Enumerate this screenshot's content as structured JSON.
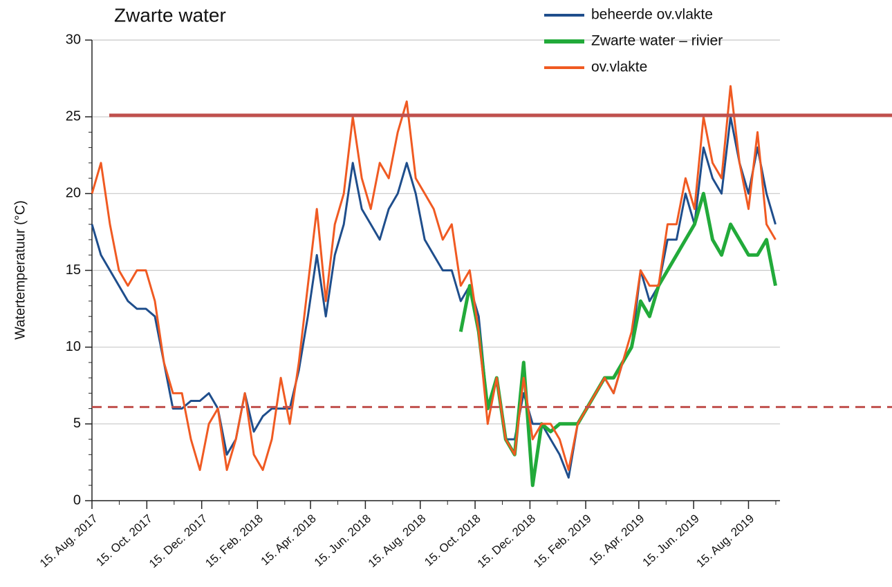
{
  "chart_data": {
    "type": "line",
    "title": "Zwarte water",
    "y_label": "Watertemperatuur (°C)",
    "x": [
      "2017-08-15",
      "2017-08-25",
      "2017-09-04",
      "2017-09-14",
      "2017-09-24",
      "2017-10-04",
      "2017-10-14",
      "2017-10-24",
      "2017-11-03",
      "2017-11-13",
      "2017-11-23",
      "2017-12-03",
      "2017-12-13",
      "2017-12-23",
      "2018-01-02",
      "2018-01-12",
      "2018-01-22",
      "2018-02-01",
      "2018-02-11",
      "2018-02-21",
      "2018-03-03",
      "2018-03-13",
      "2018-03-23",
      "2018-04-02",
      "2018-04-12",
      "2018-04-22",
      "2018-05-02",
      "2018-05-12",
      "2018-05-22",
      "2018-06-01",
      "2018-06-11",
      "2018-06-21",
      "2018-07-01",
      "2018-07-11",
      "2018-07-21",
      "2018-07-31",
      "2018-08-10",
      "2018-08-20",
      "2018-08-30",
      "2018-09-09",
      "2018-09-19",
      "2018-09-29",
      "2018-10-09",
      "2018-10-19",
      "2018-10-29",
      "2018-11-08",
      "2018-11-18",
      "2018-11-28",
      "2018-12-08",
      "2018-12-18",
      "2018-12-28",
      "2019-01-07",
      "2019-01-17",
      "2019-01-27",
      "2019-02-06",
      "2019-02-16",
      "2019-02-26",
      "2019-03-08",
      "2019-03-18",
      "2019-03-28",
      "2019-04-07",
      "2019-04-17",
      "2019-04-27",
      "2019-05-07",
      "2019-05-17",
      "2019-05-27",
      "2019-06-06",
      "2019-06-16",
      "2019-06-26",
      "2019-07-06",
      "2019-07-16",
      "2019-07-26",
      "2019-08-05",
      "2019-08-15",
      "2019-08-25",
      "2019-09-04",
      "2019-09-14"
    ],
    "series": [
      {
        "name": "beheerde ov.vlakte",
        "color": "#1f4e8c",
        "width": 3,
        "values": [
          18,
          16,
          15,
          14,
          13,
          12.5,
          12.5,
          12,
          9,
          6,
          6,
          6.5,
          6.5,
          7,
          6,
          3,
          4,
          7,
          4.5,
          5.5,
          6,
          6,
          6,
          8.5,
          12,
          16,
          12,
          16,
          18,
          22,
          19,
          18,
          17,
          19,
          20,
          22,
          20,
          17,
          16,
          15,
          15,
          13,
          14,
          12,
          6,
          8,
          4,
          4,
          7,
          5,
          5,
          4,
          3,
          1.5,
          5,
          6,
          7,
          8,
          7,
          9,
          10,
          15,
          13,
          14,
          17,
          17,
          20,
          18,
          23,
          21,
          20,
          25,
          22,
          20,
          23,
          20,
          18
        ]
      },
      {
        "name": "Zwarte water – rivier",
        "color": "#22aa3a",
        "width": 5,
        "x": [
          "2018-09-29",
          "2018-10-09",
          "2018-10-19",
          "2018-10-29",
          "2018-11-08",
          "2018-11-18",
          "2018-11-28",
          "2018-12-08",
          "2018-12-18",
          "2018-12-28",
          "2019-01-07",
          "2019-01-17",
          "2019-01-27",
          "2019-02-06",
          "2019-02-16",
          "2019-02-26",
          "2019-03-08",
          "2019-03-18",
          "2019-03-28",
          "2019-04-07",
          "2019-04-17",
          "2019-04-27",
          "2019-05-07",
          "2019-05-17",
          "2019-05-27",
          "2019-06-06",
          "2019-06-16",
          "2019-06-26",
          "2019-07-06",
          "2019-07-16",
          "2019-07-26",
          "2019-08-05",
          "2019-08-15",
          "2019-08-25",
          "2019-09-04",
          "2019-09-14"
        ],
        "values": [
          11,
          14,
          11,
          6,
          8,
          4,
          3,
          9,
          1,
          5,
          4.5,
          5,
          5,
          5,
          6,
          7,
          8,
          8,
          9,
          10,
          13,
          12,
          14,
          15,
          16,
          17,
          18,
          20,
          17,
          16,
          18,
          17,
          16,
          16,
          17,
          14
        ]
      },
      {
        "name": "ov.vlakte",
        "color": "#f05a22",
        "width": 3,
        "values": [
          20,
          22,
          18,
          15,
          14,
          15,
          15,
          13,
          9,
          7,
          7,
          4,
          2,
          5,
          6,
          2,
          4,
          7,
          3,
          2,
          4,
          8,
          5,
          9,
          14,
          19,
          13,
          18,
          20,
          25,
          21,
          19,
          22,
          21,
          24,
          26,
          21,
          20,
          19,
          17,
          18,
          14,
          15,
          11,
          5,
          8,
          4,
          3,
          8,
          4,
          5,
          5,
          4,
          2,
          5,
          6,
          7,
          8,
          7,
          9,
          11,
          15,
          14,
          14,
          18,
          18,
          21,
          19,
          25,
          22,
          21,
          27,
          22,
          19,
          24,
          18,
          17
        ]
      }
    ],
    "reference_lines": [
      {
        "value": 25.1,
        "color": "#c0504d",
        "style": "solid"
      },
      {
        "value": 6.1,
        "color": "#c0504d",
        "style": "dashed"
      }
    ],
    "xlim": [
      "2017-08-15",
      "2019-09-19"
    ],
    "xticks": [
      {
        "value": "2017-08-15",
        "label": "15. Aug. 2017"
      },
      {
        "value": "2017-10-15",
        "label": "15. Oct. 2017"
      },
      {
        "value": "2017-12-15",
        "label": "15. Dec. 2017"
      },
      {
        "value": "2018-02-15",
        "label": "15. Feb. 2018"
      },
      {
        "value": "2018-04-15",
        "label": "15. Apr. 2018"
      },
      {
        "value": "2018-06-15",
        "label": "15. Jun. 2018"
      },
      {
        "value": "2018-08-15",
        "label": "15. Aug. 2018"
      },
      {
        "value": "2018-10-15",
        "label": "15. Oct. 2018"
      },
      {
        "value": "2018-12-15",
        "label": "15. Dec. 2018"
      },
      {
        "value": "2019-02-15",
        "label": "15. Feb. 2019"
      },
      {
        "value": "2019-04-15",
        "label": "15. Apr. 2019"
      },
      {
        "value": "2019-06-15",
        "label": "15. Jun. 2019"
      },
      {
        "value": "2019-08-15",
        "label": "15. Aug. 2019"
      }
    ],
    "ylim": [
      0,
      30
    ],
    "yticks": [
      0,
      5,
      10,
      15,
      20,
      25,
      30
    ],
    "grid": true,
    "legend": "top-right"
  }
}
